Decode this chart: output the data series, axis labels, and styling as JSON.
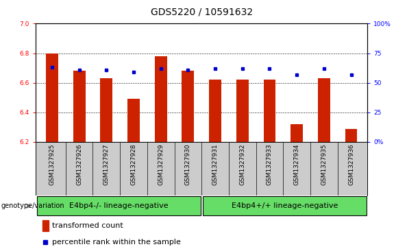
{
  "title": "GDS5220 / 10591632",
  "samples": [
    "GSM1327925",
    "GSM1327926",
    "GSM1327927",
    "GSM1327928",
    "GSM1327929",
    "GSM1327930",
    "GSM1327931",
    "GSM1327932",
    "GSM1327933",
    "GSM1327934",
    "GSM1327935",
    "GSM1327936"
  ],
  "bar_values": [
    6.8,
    6.68,
    6.63,
    6.49,
    6.78,
    6.68,
    6.62,
    6.62,
    6.62,
    6.32,
    6.63,
    6.29
  ],
  "bar_bottom": 6.2,
  "dot_pct": [
    63,
    61,
    61,
    59,
    62,
    61,
    62,
    62,
    62,
    57,
    62,
    57
  ],
  "bar_color": "#CC2200",
  "dot_color": "#0000CC",
  "ylim_left": [
    6.2,
    7.0
  ],
  "ylim_right": [
    0,
    100
  ],
  "yticks_left": [
    6.2,
    6.4,
    6.6,
    6.8,
    7.0
  ],
  "yticks_right": [
    0,
    25,
    50,
    75,
    100
  ],
  "ytick_labels_right": [
    "0%",
    "25",
    "50",
    "75",
    "100%"
  ],
  "grid_values": [
    6.4,
    6.6,
    6.8
  ],
  "group1_label": "E4bp4-/- lineage-negative",
  "group2_label": "E4bp4+/+ lineage-negative",
  "group_color": "#66DD66",
  "sample_band_color": "#CCCCCC",
  "legend_bar_label": "transformed count",
  "legend_dot_label": "percentile rank within the sample",
  "genotype_label": "genotype/variation",
  "title_fontsize": 10,
  "tick_fontsize": 6.5,
  "sample_fontsize": 6.5,
  "group_fontsize": 8,
  "legend_fontsize": 8
}
